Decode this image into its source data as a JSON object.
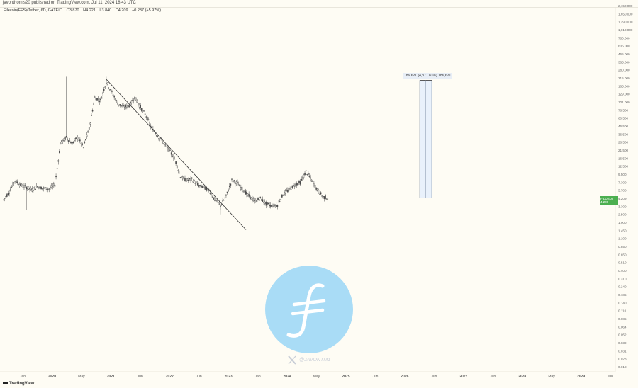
{
  "header": {
    "published_line": "javonthomis20 published on TradingView.com, Jul 11, 2024 18:43 UTC"
  },
  "symbol": {
    "name": "Filecoin(FFS)/Tether, 6D, GATEIO",
    "open": "O3.870",
    "high": "H4.221",
    "low": "L3.840",
    "close": "C4.209",
    "change": "+0.237 (+5.97%)"
  },
  "price_badge": {
    "ticker": "FILUSDT",
    "price": "4.209",
    "countdown": "5d 6h"
  },
  "measure": {
    "label": "186.621 (4,371.83%) 186,621"
  },
  "watermark": {
    "handle": "@JAVONTM1",
    "logo_color": "#a9dcf6",
    "x_icon": "x-logo-icon"
  },
  "footer": {
    "brand": "TradingView"
  },
  "colors": {
    "background": "#fefcf4",
    "candles": "#4a4a4a",
    "trendline": "#333333",
    "price_badge": "#4caf50",
    "measure_fill": "#e9f1fb",
    "measure_border": "#7f8fa6"
  },
  "chart_data": {
    "type": "candlestick",
    "scale": "log",
    "xaxis_ticks": [
      "Jan",
      "2020",
      "May",
      "2021",
      "Jun",
      "2022",
      "Jun",
      "2023",
      "Jan",
      "2024",
      "May",
      "2025",
      "Jun",
      "2026",
      "Jun",
      "2027",
      "Jun",
      "2028",
      "May",
      "2029",
      "Jun"
    ],
    "yaxis_ticks": [
      "2,150.000",
      "1,650.000",
      "1,290.000",
      "1,010.000",
      "780.000",
      "605.000",
      "465.000",
      "365.000",
      "280.000",
      "215.000",
      "165.000",
      "129.000",
      "101.000",
      "78.500",
      "60.500",
      "46.500",
      "36.500",
      "28.500",
      "21.500",
      "16.500",
      "12.500",
      "9.500",
      "7.300",
      "5.700",
      "4.209",
      "3.300",
      "2.500",
      "1.900",
      "1.450",
      "1.100",
      "0.850",
      "0.650",
      "0.510",
      "0.400",
      "0.310",
      "0.240",
      "0.185",
      "0.140",
      "0.110",
      "0.085",
      "0.064",
      "0.052",
      "0.039",
      "0.031",
      "0.023",
      "0.018"
    ],
    "series": [
      {
        "x": [
          "2019-10",
          "2019-11",
          "2019-12",
          "2020-01",
          "2020-02",
          "2020-03",
          "2020-04",
          "2020-05",
          "2020-06",
          "2020-07",
          "2020-08",
          "2020-09",
          "2020-10",
          "2020-11",
          "2020-12",
          "2021-01",
          "2021-02",
          "2021-03",
          "2021-04",
          "2021-05",
          "2021-06",
          "2021-07",
          "2021-08",
          "2021-09",
          "2021-10",
          "2021-11",
          "2021-12",
          "2022-01",
          "2022-02",
          "2022-03",
          "2022-04",
          "2022-05",
          "2022-06",
          "2022-07",
          "2022-08",
          "2022-09",
          "2022-10",
          "2022-11",
          "2022-12",
          "2023-01",
          "2023-02",
          "2023-03",
          "2023-04",
          "2023-05",
          "2023-06",
          "2023-07",
          "2023-08",
          "2023-09",
          "2023-10",
          "2023-11",
          "2023-12",
          "2024-01",
          "2024-02",
          "2024-03",
          "2024-04",
          "2024-05",
          "2024-06",
          "2024-07"
        ],
        "values": [
          4.0,
          5.2,
          7.5,
          6.5,
          6.0,
          5.5,
          6.2,
          5.8,
          5.7,
          6.5,
          25,
          30,
          25,
          30,
          22,
          40,
          110,
          100,
          180,
          130,
          90,
          80,
          85,
          110,
          80,
          60,
          40,
          32,
          25,
          20,
          15,
          8.5,
          7.5,
          7.8,
          6.5,
          6.0,
          5.5,
          4.0,
          3.3,
          4.5,
          7.5,
          6.8,
          5.5,
          4.5,
          3.8,
          4.2,
          3.5,
          3.3,
          3.4,
          4.8,
          5.5,
          6.5,
          7.0,
          10.0,
          7.5,
          5.5,
          4.4,
          4.209
        ]
      }
    ],
    "trendline": {
      "from": [
        "2021-04",
        198
      ],
      "to": [
        "2023-02",
        2.0
      ]
    },
    "measure": {
      "low": 4.27,
      "high": 191.0,
      "label": "186.621 (4,371.83%) 186,621"
    }
  }
}
